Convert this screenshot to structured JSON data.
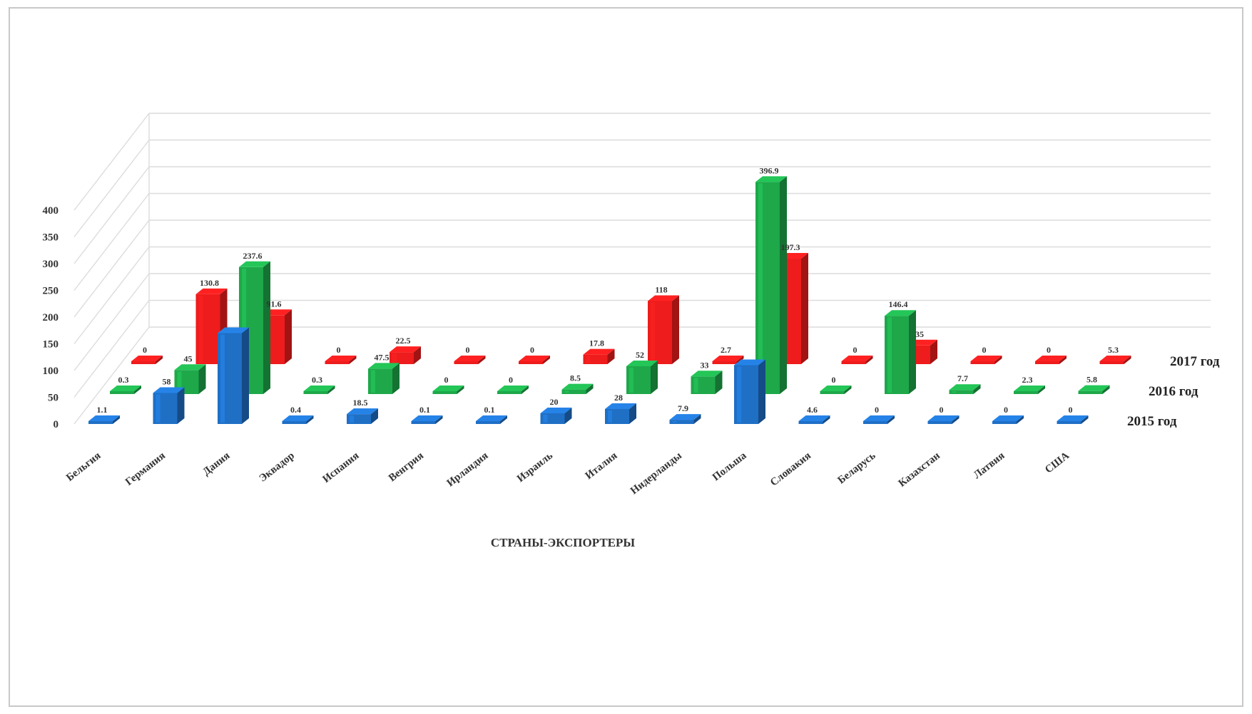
{
  "chart_data": {
    "type": "bar",
    "subtype": "3d-clustered-depth",
    "xlabel": "СТРАНЫ-ЭКСПОРТЕРЫ",
    "ylabel": "",
    "ylim": [
      0,
      400
    ],
    "yticks": [
      "0",
      "50",
      "100",
      "150",
      "200",
      "250",
      "300",
      "350",
      "400"
    ],
    "grid": true,
    "legend": "series labels at right end of each row",
    "categories": [
      "Бельгия",
      "Германия",
      "Дания",
      "Эквадор",
      "Испания",
      "Венгрия",
      "Ирландия",
      "Израиль",
      "Италия",
      "Нидерланды",
      "Польша",
      "Словакия",
      "Беларусь",
      "Казахстан",
      "Латвия",
      "США"
    ],
    "series": [
      {
        "name": "2015 год",
        "color": "#1f6fc5",
        "values": [
          1.1,
          58,
          170,
          0.4,
          18.5,
          0.1,
          0.1,
          20,
          28,
          7.9,
          110,
          4.6,
          0,
          0,
          0,
          0
        ],
        "labels": [
          "1.1",
          "58",
          "",
          "0.4",
          "18.5",
          "0.1",
          "0.1",
          "20",
          "28",
          "7.9",
          "",
          "4.6",
          "0",
          "0",
          "0",
          "0"
        ]
      },
      {
        "name": "2016 год",
        "color": "#1ea84a",
        "values": [
          0.3,
          45,
          237.6,
          0.3,
          47.5,
          0,
          0,
          8.5,
          52,
          33,
          396.9,
          0,
          146.4,
          7.7,
          2.3,
          5.8
        ],
        "labels": [
          "0.3",
          "45",
          "237.6",
          "0.3",
          "47.5",
          "0",
          "0",
          "8.5",
          "52",
          "33",
          "396.9",
          "0",
          "146.4",
          "7.7",
          "2.3",
          "5.8"
        ]
      },
      {
        "name": "2017 год",
        "color": "#ee1c1c",
        "values": [
          0,
          130.8,
          91.6,
          0,
          22.5,
          0,
          0,
          17.8,
          118,
          2.7,
          197.3,
          0,
          35,
          0,
          0,
          5.3
        ],
        "labels": [
          "0",
          "130.8",
          "91.6",
          "0",
          "22.5",
          "0",
          "0",
          "17.8",
          "118",
          "2.7",
          "197.3",
          "0",
          "35",
          "0",
          "0",
          "5.3"
        ]
      }
    ]
  }
}
